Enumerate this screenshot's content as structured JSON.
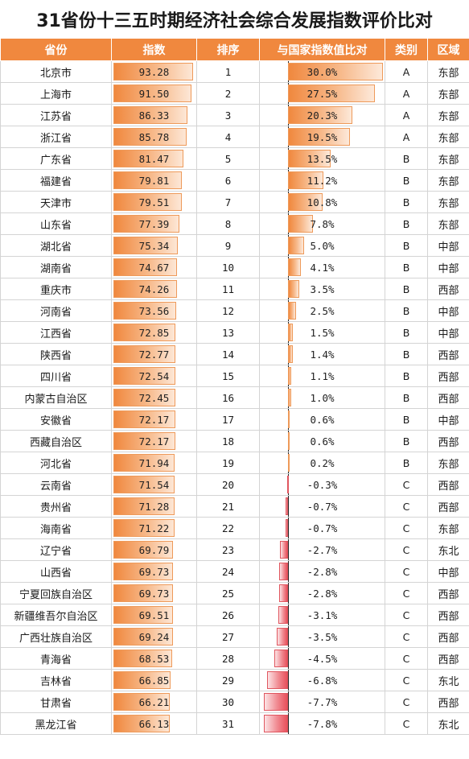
{
  "title": "31省份十三五时期经济社会综合发展指数评价比对",
  "headers": {
    "province": "省份",
    "index": "指数",
    "rank": "排序",
    "compare": "与国家指数值比对",
    "class": "类别",
    "region": "区域"
  },
  "colors": {
    "header_bg": "#f0883e",
    "positive_bar": "#f0883e",
    "negative_bar": "#e8505b"
  },
  "rows": [
    {
      "province": "北京市",
      "index": "93.28",
      "rank": "1",
      "compare": "30.0%",
      "class": "A",
      "region": "东部",
      "index_num": 93.28,
      "compare_num": 30.0
    },
    {
      "province": "上海市",
      "index": "91.50",
      "rank": "2",
      "compare": "27.5%",
      "class": "A",
      "region": "东部",
      "index_num": 91.5,
      "compare_num": 27.5
    },
    {
      "province": "江苏省",
      "index": "86.33",
      "rank": "3",
      "compare": "20.3%",
      "class": "A",
      "region": "东部",
      "index_num": 86.33,
      "compare_num": 20.3
    },
    {
      "province": "浙江省",
      "index": "85.78",
      "rank": "4",
      "compare": "19.5%",
      "class": "A",
      "region": "东部",
      "index_num": 85.78,
      "compare_num": 19.5
    },
    {
      "province": "广东省",
      "index": "81.47",
      "rank": "5",
      "compare": "13.5%",
      "class": "B",
      "region": "东部",
      "index_num": 81.47,
      "compare_num": 13.5
    },
    {
      "province": "福建省",
      "index": "79.81",
      "rank": "6",
      "compare": "11.2%",
      "class": "B",
      "region": "东部",
      "index_num": 79.81,
      "compare_num": 11.2
    },
    {
      "province": "天津市",
      "index": "79.51",
      "rank": "7",
      "compare": "10.8%",
      "class": "B",
      "region": "东部",
      "index_num": 79.51,
      "compare_num": 10.8
    },
    {
      "province": "山东省",
      "index": "77.39",
      "rank": "8",
      "compare": "7.8%",
      "class": "B",
      "region": "东部",
      "index_num": 77.39,
      "compare_num": 7.8
    },
    {
      "province": "湖北省",
      "index": "75.34",
      "rank": "9",
      "compare": "5.0%",
      "class": "B",
      "region": "中部",
      "index_num": 75.34,
      "compare_num": 5.0
    },
    {
      "province": "湖南省",
      "index": "74.67",
      "rank": "10",
      "compare": "4.1%",
      "class": "B",
      "region": "中部",
      "index_num": 74.67,
      "compare_num": 4.1
    },
    {
      "province": "重庆市",
      "index": "74.26",
      "rank": "11",
      "compare": "3.5%",
      "class": "B",
      "region": "西部",
      "index_num": 74.26,
      "compare_num": 3.5
    },
    {
      "province": "河南省",
      "index": "73.56",
      "rank": "12",
      "compare": "2.5%",
      "class": "B",
      "region": "中部",
      "index_num": 73.56,
      "compare_num": 2.5
    },
    {
      "province": "江西省",
      "index": "72.85",
      "rank": "13",
      "compare": "1.5%",
      "class": "B",
      "region": "中部",
      "index_num": 72.85,
      "compare_num": 1.5
    },
    {
      "province": "陕西省",
      "index": "72.77",
      "rank": "14",
      "compare": "1.4%",
      "class": "B",
      "region": "西部",
      "index_num": 72.77,
      "compare_num": 1.4
    },
    {
      "province": "四川省",
      "index": "72.54",
      "rank": "15",
      "compare": "1.1%",
      "class": "B",
      "region": "西部",
      "index_num": 72.54,
      "compare_num": 1.1
    },
    {
      "province": "内蒙古自治区",
      "index": "72.45",
      "rank": "16",
      "compare": "1.0%",
      "class": "B",
      "region": "西部",
      "index_num": 72.45,
      "compare_num": 1.0
    },
    {
      "province": "安徽省",
      "index": "72.17",
      "rank": "17",
      "compare": "0.6%",
      "class": "B",
      "region": "中部",
      "index_num": 72.17,
      "compare_num": 0.6
    },
    {
      "province": "西藏自治区",
      "index": "72.17",
      "rank": "18",
      "compare": "0.6%",
      "class": "B",
      "region": "西部",
      "index_num": 72.17,
      "compare_num": 0.6
    },
    {
      "province": "河北省",
      "index": "71.94",
      "rank": "19",
      "compare": "0.2%",
      "class": "B",
      "region": "东部",
      "index_num": 71.94,
      "compare_num": 0.2
    },
    {
      "province": "云南省",
      "index": "71.54",
      "rank": "20",
      "compare": "-0.3%",
      "class": "C",
      "region": "西部",
      "index_num": 71.54,
      "compare_num": -0.3
    },
    {
      "province": "贵州省",
      "index": "71.28",
      "rank": "21",
      "compare": "-0.7%",
      "class": "C",
      "region": "西部",
      "index_num": 71.28,
      "compare_num": -0.7
    },
    {
      "province": "海南省",
      "index": "71.22",
      "rank": "22",
      "compare": "-0.7%",
      "class": "C",
      "region": "东部",
      "index_num": 71.22,
      "compare_num": -0.7
    },
    {
      "province": "辽宁省",
      "index": "69.79",
      "rank": "23",
      "compare": "-2.7%",
      "class": "C",
      "region": "东北",
      "index_num": 69.79,
      "compare_num": -2.7
    },
    {
      "province": "山西省",
      "index": "69.73",
      "rank": "24",
      "compare": "-2.8%",
      "class": "C",
      "region": "中部",
      "index_num": 69.73,
      "compare_num": -2.8
    },
    {
      "province": "宁夏回族自治区",
      "index": "69.73",
      "rank": "25",
      "compare": "-2.8%",
      "class": "C",
      "region": "西部",
      "index_num": 69.73,
      "compare_num": -2.8
    },
    {
      "province": "新疆维吾尔自治区",
      "index": "69.51",
      "rank": "26",
      "compare": "-3.1%",
      "class": "C",
      "region": "西部",
      "index_num": 69.51,
      "compare_num": -3.1
    },
    {
      "province": "广西壮族自治区",
      "index": "69.24",
      "rank": "27",
      "compare": "-3.5%",
      "class": "C",
      "region": "西部",
      "index_num": 69.24,
      "compare_num": -3.5
    },
    {
      "province": "青海省",
      "index": "68.53",
      "rank": "28",
      "compare": "-4.5%",
      "class": "C",
      "region": "西部",
      "index_num": 68.53,
      "compare_num": -4.5
    },
    {
      "province": "吉林省",
      "index": "66.85",
      "rank": "29",
      "compare": "-6.8%",
      "class": "C",
      "region": "东北",
      "index_num": 66.85,
      "compare_num": -6.8
    },
    {
      "province": "甘肃省",
      "index": "66.21",
      "rank": "30",
      "compare": "-7.7%",
      "class": "C",
      "region": "西部",
      "index_num": 66.21,
      "compare_num": -7.7
    },
    {
      "province": "黑龙江省",
      "index": "66.13",
      "rank": "31",
      "compare": "-7.8%",
      "class": "C",
      "region": "东北",
      "index_num": 66.13,
      "compare_num": -7.8
    }
  ]
}
